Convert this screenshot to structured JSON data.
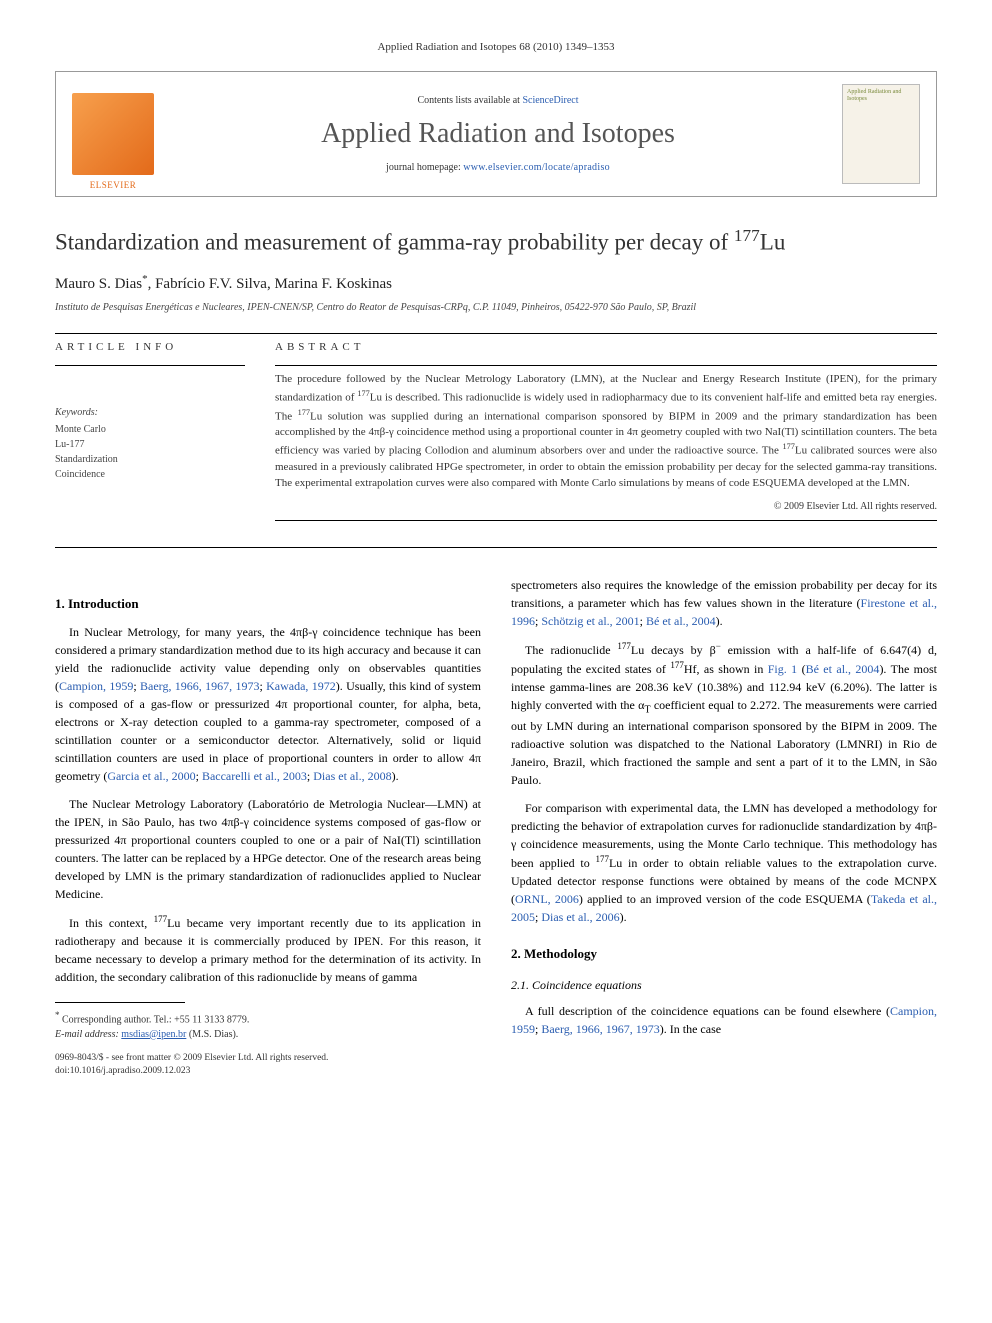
{
  "running_header": "Applied Radiation and Isotopes 68 (2010) 1349–1353",
  "banner": {
    "contents_prefix": "Contents lists available at ",
    "contents_link": "ScienceDirect",
    "journal_title": "Applied Radiation and Isotopes",
    "homepage_prefix": "journal homepage: ",
    "homepage_url": "www.elsevier.com/locate/apradiso",
    "cover_label": "Applied Radiation and Isotopes"
  },
  "title_html": "Standardization and measurement of gamma-ray probability per decay of <sup>177</sup>Lu",
  "authors_html": "Mauro S. Dias<span class=\"star\">*</span>, Fabrício F.V. Silva, Marina F. Koskinas",
  "affiliation": "Instituto de Pesquisas Energéticas e Nucleares, IPEN-CNEN/SP, Centro do Reator de Pesquisas-CRPq, C.P. 11049, Pinheiros, 05422-970 São Paulo, SP, Brazil",
  "info": {
    "left_label": "ARTICLE INFO",
    "right_label": "ABSTRACT",
    "keywords_head": "Keywords:",
    "keywords": [
      "Monte Carlo",
      "Lu-177",
      "Standardization",
      "Coincidence"
    ],
    "abstract_html": "The procedure followed by the Nuclear Metrology Laboratory (LMN), at the Nuclear and Energy Research Institute (IPEN), for the primary standardization of <sup>177</sup>Lu is described. This radionuclide is widely used in radiopharmacy due to its convenient half-life and emitted beta ray energies. The <sup>177</sup>Lu solution was supplied during an international comparison sponsored by BIPM in 2009 and the primary standardization has been accomplished by the 4πβ-γ coincidence method using a proportional counter in 4π geometry coupled with two NaI(Tl) scintillation counters. The beta efficiency was varied by placing Collodion and aluminum absorbers over and under the radioactive source. The <sup>177</sup>Lu calibrated sources were also measured in a previously calibrated HPGe spectrometer, in order to obtain the emission probability per decay for the selected gamma-ray transitions. The experimental extrapolation curves were also compared with Monte Carlo simulations by means of code ESQUEMA developed at the LMN.",
    "copyright": "© 2009 Elsevier Ltd. All rights reserved."
  },
  "body": {
    "left": {
      "sec1_head": "1. Introduction",
      "p1_html": "In Nuclear Metrology, for many years, the 4πβ-γ coincidence technique has been considered a primary standardization method due to its high accuracy and because it can yield the radionuclide activity value depending only on observables quantities (<span class=\"ref\">Campion, 1959</span>; <span class=\"ref\">Baerg, 1966, 1967, 1973</span>; <span class=\"ref\">Kawada, 1972</span>). Usually, this kind of system is composed of a gas-flow or pressurized 4π proportional counter, for alpha, beta, electrons or X-ray detection coupled to a gamma-ray spectrometer, composed of a scintillation counter or a semiconductor detector. Alternatively, solid or liquid scintillation counters are used in place of proportional counters in order to allow 4π geometry (<span class=\"ref\">Garcia et al., 2000</span>; <span class=\"ref\">Baccarelli et al., 2003</span>; <span class=\"ref\">Dias et al., 2008</span>).",
      "p2_html": "The Nuclear Metrology Laboratory (Laboratório de Metrologia Nuclear—LMN) at the IPEN, in São Paulo, has two 4πβ-γ coincidence systems composed of gas-flow or pressurized 4π proportional counters coupled to one or a pair of NaI(Tl) scintillation counters. The latter can be replaced by a HPGe detector. One of the research areas being developed by LMN is the primary standardization of radionuclides applied to Nuclear Medicine.",
      "p3_html": "In this context, <sup>177</sup>Lu became very important recently due to its application in radiotherapy and because it is commercially produced by IPEN. For this reason, it became necessary to develop a primary method for the determination of its activity. In addition, the secondary calibration of this radionuclide by means of gamma"
    },
    "right": {
      "p4_html": "spectrometers also requires the knowledge of the emission probability per decay for its transitions, a parameter which has few values shown in the literature (<span class=\"ref\">Firestone et al., 1996</span>; <span class=\"ref\">Schötzig et al., 2001</span>; <span class=\"ref\">Bé et al., 2004</span>).",
      "p5_html": "The radionuclide <sup>177</sup>Lu decays by β<sup>−</sup> emission with a half-life of 6.647(4) d, populating the excited states of <sup>177</sup>Hf, as shown in <span class=\"ref\">Fig. 1</span> (<span class=\"ref\">Bé et al., 2004</span>). The most intense gamma-lines are 208.36 keV (10.38%) and 112.94 keV (6.20%). The latter is highly converted with the α<sub>T</sub> coefficient equal to 2.272. The measurements were carried out by LMN during an international comparison sponsored by the BIPM in 2009. The radioactive solution was dispatched to the National Laboratory (LMNRI) in Rio de Janeiro, Brazil, which fractioned the sample and sent a part of it to the LMN, in São Paulo.",
      "p6_html": "For comparison with experimental data, the LMN has developed a methodology for predicting the behavior of extrapolation curves for radionuclide standardization by 4πβ-γ coincidence measurements, using the Monte Carlo technique. This methodology has been applied to <sup>177</sup>Lu in order to obtain reliable values to the extrapolation curve. Updated detector response functions were obtained by means of the code MCNPX (<span class=\"ref\">ORNL, 2006</span>) applied to an improved version of the code ESQUEMA (<span class=\"ref\">Takeda et al., 2005</span>; <span class=\"ref\">Dias et al., 2006</span>).",
      "sec2_head": "2. Methodology",
      "sec21_head": "2.1. Coincidence equations",
      "p7_html": "A full description of the coincidence equations can be found elsewhere (<span class=\"ref\">Campion, 1959</span>; <span class=\"ref\">Baerg, 1966, 1967, 1973</span>). In the case"
    }
  },
  "footnote": {
    "corr_html": "<span class=\"star\">*</span> Corresponding author. Tel.: +55 11 3133 8779.",
    "email_prefix": "E-mail address: ",
    "email": "msdias@ipen.br",
    "email_suffix": " (M.S. Dias)."
  },
  "doi": {
    "line1": "0969-8043/$ - see front matter © 2009 Elsevier Ltd. All rights reserved.",
    "line2": "doi:10.1016/j.apradiso.2009.12.023"
  }
}
